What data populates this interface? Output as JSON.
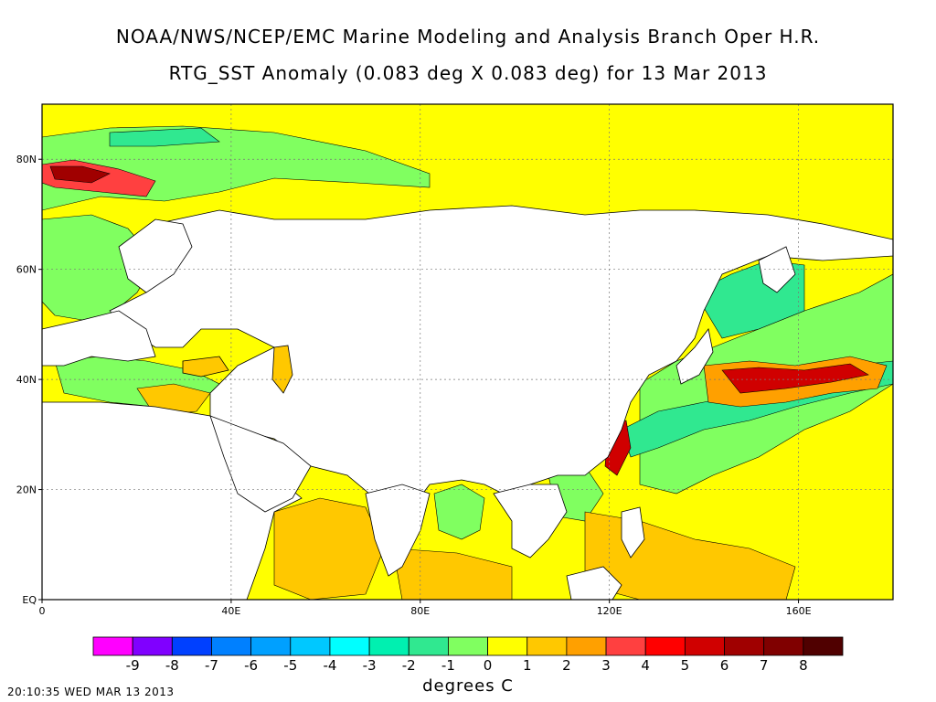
{
  "title_line1": "NOAA/NWS/NCEP/EMC Marine Modeling and Analysis Branch Oper H.R.",
  "title_line2": "RTG_SST Anomaly (0.083 deg X 0.083 deg) for 13 Mar 2013",
  "map": {
    "lon_range": [
      0,
      180
    ],
    "lat_range": [
      0,
      90
    ],
    "lat_ticks": [
      {
        "value": 80,
        "label": "80N"
      },
      {
        "value": 60,
        "label": "60N"
      },
      {
        "value": 40,
        "label": "40N"
      },
      {
        "value": 20,
        "label": "20N"
      },
      {
        "value": 0,
        "label": "EQ"
      }
    ],
    "lon_ticks": [
      {
        "value": 0,
        "label": "0"
      },
      {
        "value": 40,
        "label": "40E"
      },
      {
        "value": 80,
        "label": "80E"
      },
      {
        "value": 120,
        "label": "120E"
      },
      {
        "value": 160,
        "label": "160E"
      }
    ],
    "ocean_background_color": "#ffff00",
    "land_color": "#ffffff",
    "grid": "dotted"
  },
  "legend": {
    "colors": [
      "#ff00ff",
      "#8000ff",
      "#0040ff",
      "#0080ff",
      "#00a0ff",
      "#00c8ff",
      "#00ffff",
      "#00f0b0",
      "#30e890",
      "#80ff60",
      "#ffff00",
      "#ffc800",
      "#ffa000",
      "#ff4040",
      "#ff0000",
      "#d00000",
      "#a00000",
      "#800000",
      "#500000"
    ],
    "labels": [
      "-9",
      "-8",
      "-7",
      "-6",
      "-5",
      "-4",
      "-3",
      "-2",
      "-1",
      "0",
      "1",
      "2",
      "3",
      "4",
      "5",
      "6",
      "7",
      "8"
    ]
  },
  "units": "degrees C",
  "timestamp": "20:10:35  WED MAR 13 2013"
}
